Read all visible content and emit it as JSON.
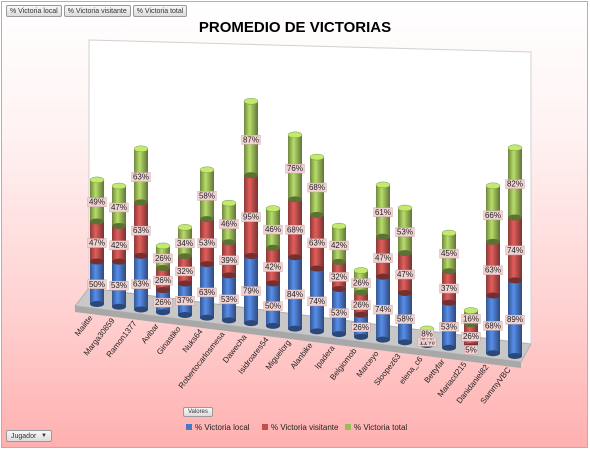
{
  "field_buttons": [
    "% Victoria local",
    "% Victoria visitante",
    "% Victoria total"
  ],
  "values_button": "Valores",
  "row_field_button": "Jugador",
  "colors": {
    "local": "#4a78c8",
    "visitante": "#c0504d",
    "total": "#9bbb59",
    "label_bg": "#f2d3d3"
  },
  "chart_data": {
    "type": "bar",
    "stacked": true,
    "three_d": true,
    "title": "PROMEDIO DE VICTORIAS",
    "legend_position": "bottom",
    "categories": [
      "Maiitte",
      "Marga30859",
      "Ramon1377",
      "Avibar",
      "Ginastiko",
      "Nuks64",
      "Robertocarlosmesa",
      "Dawecha",
      "Isidroares54",
      "Miguelorg",
      "Alanbike",
      "Ipadera",
      "Belgiomob",
      "Marceyo",
      "Sloopez63",
      "elena_c6",
      "Bettyfar",
      "Mariacd215",
      "Danidaniel82",
      "SammyVBC"
    ],
    "series": [
      {
        "name": "% Victoria local",
        "values": [
          50,
          53,
          63,
          26,
          37,
          63,
          53,
          79,
          50,
          84,
          74,
          53,
          26,
          74,
          58,
          11,
          53,
          5,
          68,
          89
        ]
      },
      {
        "name": "% Victoria visitante",
        "values": [
          47,
          42,
          63,
          26,
          32,
          53,
          39,
          95,
          42,
          68,
          63,
          32,
          26,
          47,
          47,
          0,
          37,
          26,
          63,
          74
        ]
      },
      {
        "name": "% Victoria total",
        "values": [
          49,
          47,
          63,
          26,
          34,
          58,
          46,
          87,
          46,
          76,
          68,
          42,
          26,
          61,
          53,
          8,
          45,
          16,
          66,
          82
        ]
      }
    ],
    "data_labels": [
      [
        "50%",
        "53%",
        "63%",
        "26%",
        "37%",
        "63%",
        "53%",
        "79%",
        "50%",
        "84%",
        "74%",
        "53%",
        "26%",
        "74%",
        "58%",
        "11%",
        "53%",
        "5%",
        "68%",
        "89%"
      ],
      [
        "47%",
        "42%",
        "63%",
        "26%",
        "32%",
        "53%",
        "39%",
        "95%",
        "42%",
        "68%",
        "63%",
        "32%",
        "26%",
        "47%",
        "47%",
        "0%",
        "37%",
        "26%",
        "63%",
        "74%"
      ],
      [
        "49%",
        "47%",
        "63%",
        "26%",
        "34%",
        "58%",
        "46%",
        "87%",
        "46%",
        "76%",
        "68%",
        "42%",
        "26%",
        "61%",
        "53%",
        "8%",
        "45%",
        "16%",
        "66%",
        "82%"
      ]
    ],
    "grid": false
  }
}
